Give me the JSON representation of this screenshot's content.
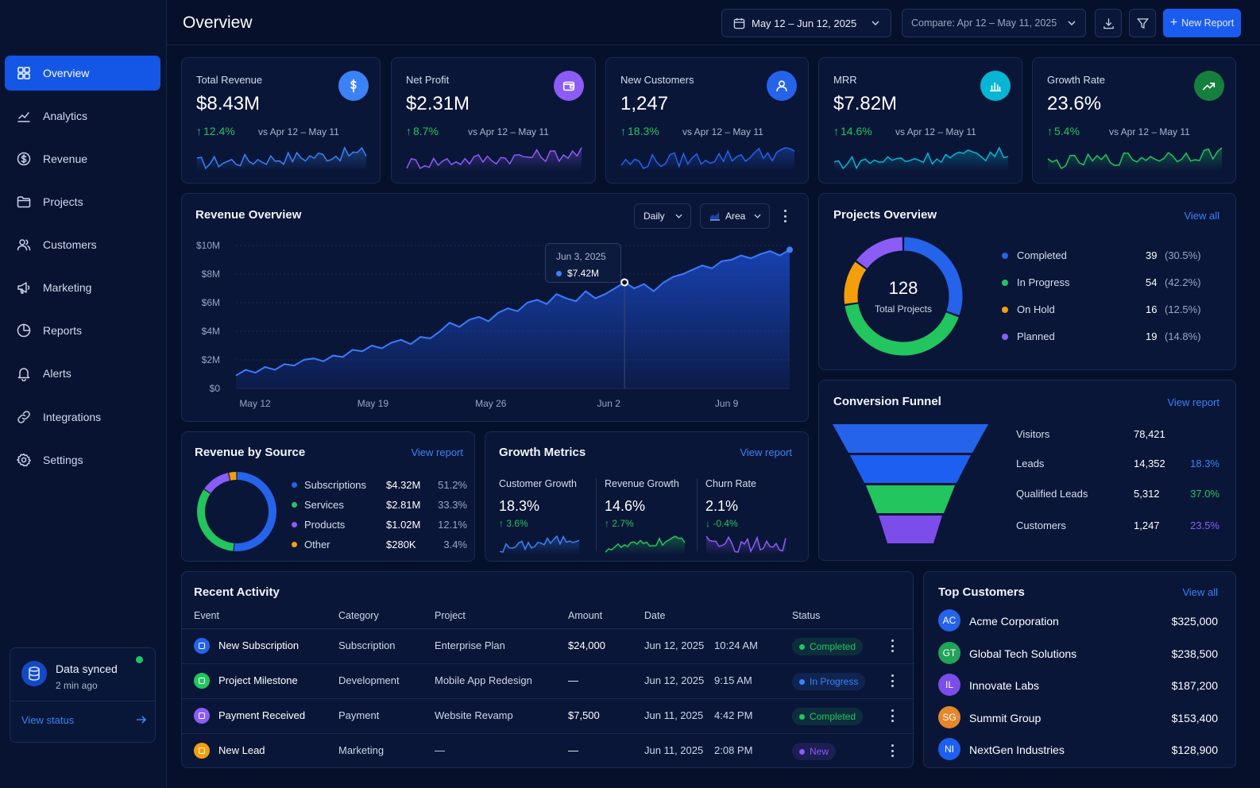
{
  "header": {
    "title": "Overview",
    "date_range": "May 12 – Jun 12, 2025",
    "compare": "Compare: Apr 12 – May 11, 2025",
    "new_report": "New Report"
  },
  "sidebar": {
    "items": [
      {
        "label": "Overview",
        "icon": "grid-icon"
      },
      {
        "label": "Analytics",
        "icon": "analytics-icon"
      },
      {
        "label": "Revenue",
        "icon": "dollar-circle-icon"
      },
      {
        "label": "Projects",
        "icon": "folder-icon"
      },
      {
        "label": "Customers",
        "icon": "users-icon"
      },
      {
        "label": "Marketing",
        "icon": "megaphone-icon"
      },
      {
        "label": "Reports",
        "icon": "pie-icon"
      },
      {
        "label": "Alerts",
        "icon": "bell-icon"
      },
      {
        "label": "Integrations",
        "icon": "link-icon"
      },
      {
        "label": "Settings",
        "icon": "gear-icon"
      }
    ],
    "sync": {
      "title": "Data synced",
      "time": "2 min ago",
      "link": "View status"
    }
  },
  "kpis": [
    {
      "label": "Total Revenue",
      "value": "$8.43M",
      "change": "12.4%",
      "compare": "vs Apr 12 – May 11",
      "color": "#3b82f6",
      "icon": "dollar-icon"
    },
    {
      "label": "Net Profit",
      "value": "$2.31M",
      "change": "8.7%",
      "compare": "vs Apr 12 – May 11",
      "color": "#8b5cf6",
      "icon": "wallet-icon"
    },
    {
      "label": "New Customers",
      "value": "1,247",
      "change": "18.3%",
      "compare": "vs Apr 12 – May 11",
      "color": "#2563eb",
      "icon": "user-icon"
    },
    {
      "label": "MRR",
      "value": "$7.82M",
      "change": "14.6%",
      "compare": "vs Apr 12 – May 11",
      "color": "#06b6d4",
      "icon": "bar-chart-icon"
    },
    {
      "label": "Growth Rate",
      "value": "23.6%",
      "change": "5.4%",
      "compare": "vs Apr 12 – May 11",
      "color": "#22c55e",
      "icon": "trend-up-icon"
    }
  ],
  "revenue_overview": {
    "title": "Revenue Overview",
    "period": "Daily",
    "chart_type": "Area",
    "tooltip": {
      "date": "Jun 3, 2025",
      "value": "$7.42M"
    }
  },
  "chart_data": [
    {
      "type": "area",
      "x_labels": [
        "May 12",
        "May 19",
        "May 26",
        "Jun 2",
        "Jun 9"
      ],
      "y_ticks": [
        "$0",
        "$2M",
        "$4M",
        "$6M",
        "$8M",
        "$10M"
      ],
      "ylim": [
        0,
        10
      ],
      "values": [
        0.9,
        1.3,
        1.1,
        1.5,
        1.3,
        1.7,
        1.6,
        2.0,
        2.1,
        1.9,
        2.3,
        2.2,
        2.7,
        2.6,
        3.0,
        2.8,
        3.2,
        3.4,
        3.1,
        3.6,
        3.5,
        4.0,
        4.6,
        4.3,
        4.8,
        5.0,
        4.7,
        5.3,
        5.6,
        5.4,
        6.0,
        6.2,
        5.9,
        6.6,
        6.3,
        6.1,
        6.8,
        6.3,
        6.6,
        7.0,
        7.42,
        7.0,
        7.3,
        6.8,
        7.4,
        7.8,
        8.0,
        8.3,
        8.6,
        8.4,
        8.9,
        9.0,
        9.3,
        9.1,
        9.4,
        9.6,
        9.3,
        9.7
      ],
      "highlight": {
        "x": "Jun 3, 2025",
        "y": 7.42
      }
    },
    {
      "type": "pie",
      "title": "Projects Overview",
      "categories": [
        "Completed",
        "In Progress",
        "On Hold",
        "Planned"
      ],
      "values": [
        39,
        54,
        16,
        19
      ],
      "percent": [
        "(30.5%)",
        "(42.2%)",
        "(12.5%)",
        "(14.8%)"
      ],
      "colors": [
        "#2563eb",
        "#22c55e",
        "#f59e0b",
        "#8b5cf6"
      ],
      "total": "128",
      "total_label": "Total Projects"
    },
    {
      "type": "pie",
      "title": "Revenue by Source",
      "categories": [
        "Subscriptions",
        "Services",
        "Products",
        "Other"
      ],
      "values": [
        4.32,
        2.81,
        1.02,
        0.28
      ],
      "amounts": [
        "$4.32M",
        "$2.81M",
        "$1.02M",
        "$280K"
      ],
      "percent": [
        "51.2%",
        "33.3%",
        "12.1%",
        "3.4%"
      ],
      "colors": [
        "#2563eb",
        "#22c55e",
        "#8b5cf6",
        "#f59e0b"
      ]
    }
  ],
  "projects_overview": {
    "title": "Projects Overview",
    "link": "View all"
  },
  "revenue_source": {
    "title": "Revenue by Source",
    "link": "View report"
  },
  "growth_metrics": {
    "title": "Growth Metrics",
    "link": "View report",
    "metrics": [
      {
        "label": "Customer Growth",
        "value": "18.3%",
        "change": "3.6%",
        "dir": "up",
        "color": "#3b82f6"
      },
      {
        "label": "Revenue Growth",
        "value": "14.6%",
        "change": "2.7%",
        "dir": "up",
        "color": "#22c55e"
      },
      {
        "label": "Churn Rate",
        "value": "2.1%",
        "change": "-0.4%",
        "dir": "down",
        "color": "#8b5cf6"
      }
    ]
  },
  "funnel": {
    "title": "Conversion Funnel",
    "link": "View report",
    "stages": [
      {
        "label": "Visitors",
        "value": "78,421",
        "rate": "",
        "color": "#2563eb",
        "rate_color": "#3b82f6"
      },
      {
        "label": "Leads",
        "value": "14,352",
        "rate": "18.3%",
        "color": "#1d5ff0",
        "rate_color": "#3b82f6"
      },
      {
        "label": "Qualified Leads",
        "value": "5,312",
        "rate": "37.0%",
        "color": "#22c55e",
        "rate_color": "#22c55e"
      },
      {
        "label": "Customers",
        "value": "1,247",
        "rate": "23.5%",
        "color": "#7c4deb",
        "rate_color": "#8b5cf6"
      }
    ]
  },
  "activity": {
    "title": "Recent Activity",
    "columns": [
      "Event",
      "Category",
      "Project",
      "Amount",
      "Date",
      "Status"
    ],
    "rows": [
      {
        "event": "New Subscription",
        "category": "Subscription",
        "project": "Enterprise Plan",
        "amount": "$24,000",
        "date": "Jun 12, 2025",
        "time": "10:24 AM",
        "status": "Completed",
        "icon_color": "#2563eb",
        "status_color": "#22c55e"
      },
      {
        "event": "Project Milestone",
        "category": "Development",
        "project": "Mobile App Redesign",
        "amount": "—",
        "date": "Jun 12, 2025",
        "time": "9:15 AM",
        "status": "In Progress",
        "icon_color": "#22c55e",
        "status_color": "#3b82f6"
      },
      {
        "event": "Payment Received",
        "category": "Payment",
        "project": "Website Revamp",
        "amount": "$7,500",
        "date": "Jun 11, 2025",
        "time": "4:42 PM",
        "status": "Completed",
        "icon_color": "#8b5cf6",
        "status_color": "#22c55e"
      },
      {
        "event": "New Lead",
        "category": "Marketing",
        "project": "—",
        "amount": "—",
        "date": "Jun 11, 2025",
        "time": "2:08 PM",
        "status": "New",
        "icon_color": "#f59e0b",
        "status_color": "#8b5cf6"
      }
    ]
  },
  "top_customers": {
    "title": "Top Customers",
    "link": "View all",
    "items": [
      {
        "initials": "AC",
        "name": "Acme Corporation",
        "value": "$325,000",
        "color": "#2563eb"
      },
      {
        "initials": "GT",
        "name": "Global Tech Solutions",
        "value": "$238,500",
        "color": "#22a35a"
      },
      {
        "initials": "IL",
        "name": "Innovate Labs",
        "value": "$187,200",
        "color": "#7c4deb"
      },
      {
        "initials": "SG",
        "name": "Summit Group",
        "value": "$153,400",
        "color": "#e6862a"
      },
      {
        "initials": "NI",
        "name": "NextGen Industries",
        "value": "$128,900",
        "color": "#1d5ff0"
      }
    ]
  }
}
